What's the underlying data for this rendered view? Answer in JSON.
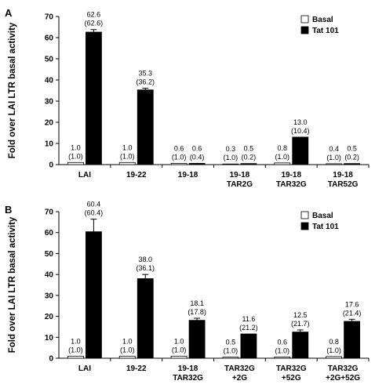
{
  "chart_data": [
    {
      "type": "bar",
      "panel": "A",
      "ylabel": "Fold over LAI LTR basal activity",
      "ylim": [
        0,
        70
      ],
      "yticks": [
        0,
        10,
        20,
        30,
        40,
        50,
        60,
        70
      ],
      "categories": [
        [
          "LAI"
        ],
        [
          "19-22"
        ],
        [
          "19-18"
        ],
        [
          "19-18",
          "TAR2G"
        ],
        [
          "19-18",
          "TAR32G"
        ],
        [
          "19-18",
          "TAR52G"
        ]
      ],
      "series": [
        {
          "name": "Basal",
          "color": "#ffffff",
          "values": [
            1.0,
            1.0,
            0.6,
            0.3,
            0.8,
            0.4
          ],
          "errors": [
            0,
            0,
            0,
            0,
            0,
            0
          ],
          "labels": [
            [
              "1.0",
              "(1.0)"
            ],
            [
              "1.0",
              "(1.0)"
            ],
            [
              "0.6",
              "(1.0)"
            ],
            [
              "0.3",
              "(1.0)"
            ],
            [
              "0.8",
              "(1.0)"
            ],
            [
              "0.4",
              "(1.0)"
            ]
          ]
        },
        {
          "name": "Tat 101",
          "color": "#000000",
          "values": [
            62.6,
            35.3,
            0.6,
            0.5,
            13.0,
            0.5
          ],
          "errors": [
            1.2,
            0.8,
            0,
            0,
            0,
            0
          ],
          "labels": [
            [
              "62.6",
              "(62.6)"
            ],
            [
              "35.3",
              "(36.2)"
            ],
            [
              "0.6",
              "(0.4)"
            ],
            [
              "0.5",
              "(0.2)"
            ],
            [
              "13.0",
              "(10.4)"
            ],
            [
              "0.5",
              "(0.2)"
            ]
          ]
        }
      ],
      "legend": "top-right"
    },
    {
      "type": "bar",
      "panel": "B",
      "ylabel": "Fold over LAI LTR basal activity",
      "ylim": [
        0,
        70
      ],
      "yticks": [
        0,
        10,
        20,
        30,
        40,
        50,
        60,
        70
      ],
      "categories": [
        [
          "LAI"
        ],
        [
          "19-22"
        ],
        [
          "19-18",
          "TAR32G"
        ],
        [
          "TAR32G",
          "+2G"
        ],
        [
          "TAR32G",
          "+52G"
        ],
        [
          "TAR32G",
          "+2G+52G"
        ]
      ],
      "series": [
        {
          "name": "Basal",
          "color": "#ffffff",
          "values": [
            1.0,
            1.0,
            1.0,
            0.5,
            0.6,
            0.8
          ],
          "errors": [
            0,
            0,
            0,
            0,
            0,
            0
          ],
          "labels": [
            [
              "1.0",
              "(1.0)"
            ],
            [
              "1.0",
              "(1.0)"
            ],
            [
              "1.0",
              "(1.0)"
            ],
            [
              "0.5",
              "(1.0)"
            ],
            [
              "0.6",
              "(1.0)"
            ],
            [
              "0.8",
              "(1.0)"
            ]
          ]
        },
        {
          "name": "Tat 101",
          "color": "#000000",
          "values": [
            60.4,
            38.0,
            18.1,
            11.6,
            12.5,
            17.6
          ],
          "errors": [
            6.0,
            2.0,
            1.0,
            0,
            1.0,
            1.0
          ],
          "labels": [
            [
              "60.4",
              "(60.4)"
            ],
            [
              "38.0",
              "(36.1)"
            ],
            [
              "18.1",
              "(17.8)"
            ],
            [
              "11.6",
              "(21.2)"
            ],
            [
              "12.5",
              "(21.7)"
            ],
            [
              "17.6",
              "(21.4)"
            ]
          ]
        }
      ],
      "legend": "top-right"
    }
  ]
}
